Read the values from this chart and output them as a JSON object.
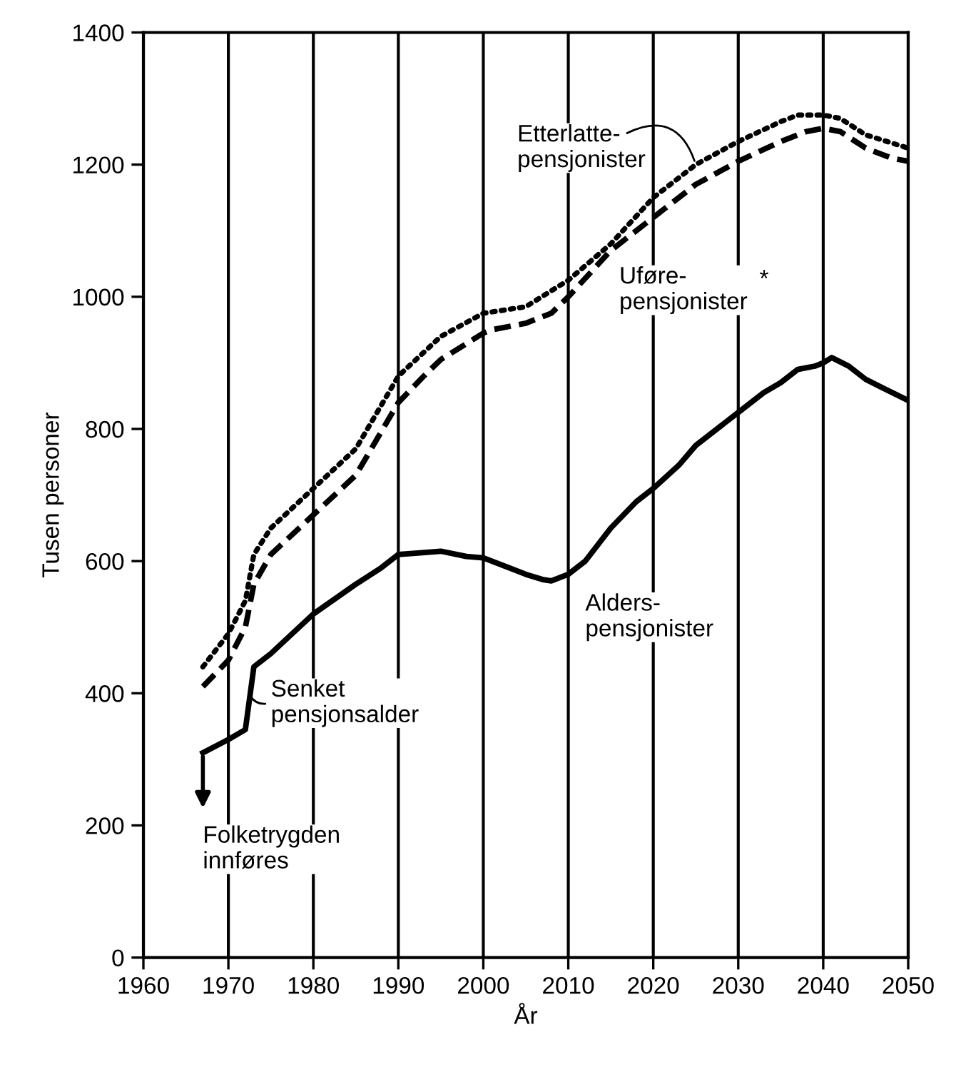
{
  "chart_data": {
    "type": "line",
    "xlabel": "År",
    "ylabel": "Tusen personer",
    "xlim": [
      1960,
      2050
    ],
    "xticks": [
      1960,
      1970,
      1980,
      1990,
      2000,
      2010,
      2020,
      2030,
      2040,
      2050
    ],
    "ylim": [
      0,
      1400
    ],
    "yticks": [
      0,
      200,
      400,
      600,
      800,
      1000,
      1200,
      1400
    ],
    "grid": "x",
    "legend": false,
    "series": [
      {
        "name": "Alders-\npensjonister",
        "color": "#000000",
        "line_style": "solid",
        "x": [
          1967,
          1970,
          1972,
          1973,
          1975,
          1980,
          1985,
          1988,
          1990,
          1992,
          1995,
          1998,
          2000,
          2003,
          2005,
          2007,
          2008,
          2010,
          2012,
          2015,
          2018,
          2020,
          2023,
          2025,
          2028,
          2030,
          2033,
          2035,
          2037,
          2039,
          2040,
          2041,
          2043,
          2045,
          2047,
          2050
        ],
        "values": [
          310,
          330,
          345,
          440,
          460,
          520,
          565,
          590,
          610,
          612,
          615,
          607,
          605,
          590,
          580,
          572,
          570,
          580,
          600,
          650,
          690,
          710,
          745,
          775,
          805,
          825,
          855,
          870,
          890,
          895,
          900,
          908,
          895,
          875,
          862,
          843
        ]
      },
      {
        "name": "Uføre-\npensjonister",
        "color": "#000000",
        "line_style": "dashed",
        "x": [
          1967,
          1970,
          1972,
          1973,
          1975,
          1980,
          1985,
          1990,
          1993,
          1995,
          2000,
          2001,
          2005,
          2008,
          2010,
          2015,
          2020,
          2025,
          2030,
          2035,
          2038,
          2040,
          2042,
          2045,
          2048,
          2050
        ],
        "values": [
          410,
          450,
          500,
          565,
          610,
          670,
          730,
          840,
          880,
          905,
          945,
          950,
          960,
          975,
          1000,
          1070,
          1120,
          1170,
          1205,
          1235,
          1250,
          1255,
          1250,
          1225,
          1210,
          1205
        ]
      },
      {
        "name": "Etterlatte-\npensjonister",
        "color": "#000000",
        "line_style": "dotted",
        "x": [
          1967,
          1970,
          1972,
          1973,
          1975,
          1980,
          1985,
          1990,
          1995,
          2000,
          2005,
          2010,
          2015,
          2020,
          2025,
          2030,
          2035,
          2037,
          2040,
          2042,
          2045,
          2050
        ],
        "values": [
          440,
          490,
          540,
          610,
          650,
          710,
          770,
          880,
          940,
          975,
          985,
          1025,
          1080,
          1150,
          1200,
          1235,
          1265,
          1275,
          1275,
          1270,
          1245,
          1225
        ]
      }
    ],
    "annotations": [
      {
        "text": "Senket\npensjonsalder",
        "x": 1973,
        "y": 400
      },
      {
        "text": "Folketrygden\ninnføres",
        "x": 1967,
        "y": 310
      },
      "*"
    ]
  }
}
